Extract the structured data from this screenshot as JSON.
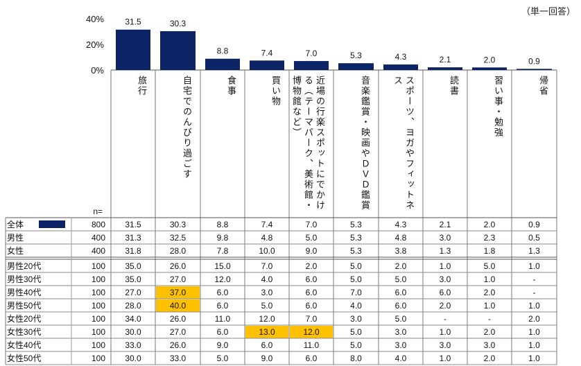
{
  "note": "（単一回答）",
  "n_label": "n=",
  "chart_data": {
    "type": "bar",
    "categories": [
      "旅行",
      "自宅でのんびり過ごす",
      "食事",
      "買い物",
      "近場の行楽スポットにでかける（テーマパーク、美術館・博物館など）",
      "音楽鑑賞・映画やＤＶＤ鑑賞",
      "スポーツ、ヨガやフィットネス",
      "読書",
      "習い事・勉強",
      "帰省"
    ],
    "values": [
      31.5,
      30.3,
      8.8,
      7.4,
      7.0,
      5.3,
      4.3,
      2.1,
      2.0,
      0.9
    ],
    "value_labels": [
      "31.5",
      "30.3",
      "8.8",
      "7.4",
      "7.0",
      "5.3",
      "4.3",
      "2.1",
      "2.0",
      "0.9"
    ],
    "yticks": [
      "40%",
      "20%",
      "0%"
    ],
    "ylim": [
      0,
      40
    ],
    "bar_color": "#0c2466"
  },
  "table": {
    "rows": [
      {
        "label": "全体",
        "n": "800",
        "values": [
          "31.5",
          "30.3",
          "8.8",
          "7.4",
          "7.0",
          "5.3",
          "4.3",
          "2.1",
          "2.0",
          "0.9"
        ],
        "legend": true
      },
      {
        "label": "男性",
        "n": "400",
        "values": [
          "31.3",
          "32.5",
          "9.8",
          "4.8",
          "5.0",
          "5.3",
          "4.8",
          "3.0",
          "2.3",
          "0.5"
        ]
      },
      {
        "label": "女性",
        "n": "400",
        "values": [
          "31.8",
          "28.0",
          "7.8",
          "10.0",
          "9.0",
          "5.3",
          "3.8",
          "1.3",
          "1.8",
          "1.3"
        ]
      },
      {
        "label": "男性20代",
        "n": "100",
        "values": [
          "35.0",
          "26.0",
          "15.0",
          "7.0",
          "2.0",
          "5.0",
          "2.0",
          "1.0",
          "5.0",
          "1.0"
        ]
      },
      {
        "label": "男性30代",
        "n": "100",
        "values": [
          "35.0",
          "27.0",
          "12.0",
          "4.0",
          "6.0",
          "5.0",
          "5.0",
          "3.0",
          "1.0",
          "-"
        ]
      },
      {
        "label": "男性40代",
        "n": "100",
        "values": [
          "27.0",
          "37.0",
          "6.0",
          "3.0",
          "6.0",
          "7.0",
          "6.0",
          "6.0",
          "2.0",
          "-"
        ]
      },
      {
        "label": "男性50代",
        "n": "100",
        "values": [
          "28.0",
          "40.0",
          "6.0",
          "5.0",
          "6.0",
          "4.0",
          "6.0",
          "2.0",
          "1.0",
          "1.0"
        ]
      },
      {
        "label": "女性20代",
        "n": "100",
        "values": [
          "34.0",
          "26.0",
          "11.0",
          "12.0",
          "7.0",
          "3.0",
          "5.0",
          "-",
          "-",
          "2.0"
        ]
      },
      {
        "label": "女性30代",
        "n": "100",
        "values": [
          "30.0",
          "27.0",
          "6.0",
          "13.0",
          "12.0",
          "5.0",
          "3.0",
          "1.0",
          "2.0",
          "1.0"
        ]
      },
      {
        "label": "女性40代",
        "n": "100",
        "values": [
          "33.0",
          "26.0",
          "9.0",
          "6.0",
          "11.0",
          "5.0",
          "3.0",
          "3.0",
          "3.0",
          "1.0"
        ]
      },
      {
        "label": "女性50代",
        "n": "100",
        "values": [
          "30.0",
          "33.0",
          "5.0",
          "9.0",
          "6.0",
          "8.0",
          "4.0",
          "1.0",
          "2.0",
          "1.0"
        ]
      }
    ],
    "highlights": [
      [
        5,
        1
      ],
      [
        6,
        1
      ],
      [
        8,
        3
      ],
      [
        8,
        4
      ]
    ],
    "highlight_color": "#ffc000"
  }
}
